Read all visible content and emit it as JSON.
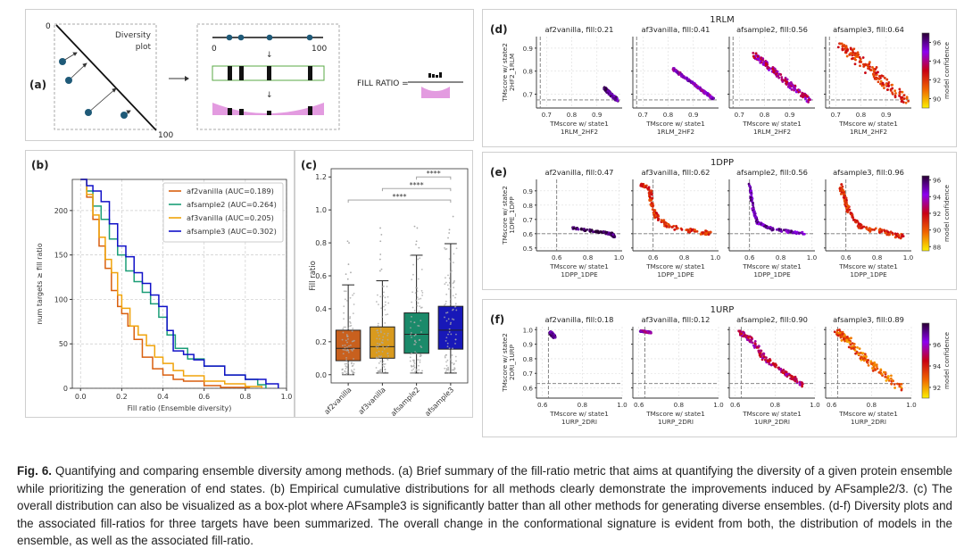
{
  "panel_a": {
    "label": "(a)",
    "axis_start": "0",
    "axis_end": "100",
    "diversity_plot_label_line1": "Diversity",
    "diversity_plot_label_line2": "plot",
    "line_start": "0",
    "line_end": "100",
    "fill_ratio_label": "FILL RATIO =",
    "colors": {
      "point": "#1f5a78",
      "bin_box": "#5aaa45",
      "density": "#e39be0"
    }
  },
  "chart_data": [
    {
      "id": "b",
      "panel_label": "(b)",
      "type": "line",
      "title": "",
      "xlabel": "Fill ratio (Ensemble diversity)",
      "ylabel": "num targets ≥ fill ratio",
      "xlim": [
        -0.04,
        1.0
      ],
      "ylim": [
        0,
        235
      ],
      "xticks": [
        "0.0",
        "0.2",
        "0.4",
        "0.6",
        "0.8",
        "1.0"
      ],
      "yticks": [
        "0",
        "50",
        "100",
        "150",
        "200"
      ],
      "grid": true,
      "legend_position": "top-right",
      "series": [
        {
          "name": "af2vanilla (AUC=0.189)",
          "color": "#d95f0e",
          "x": [
            0.0,
            0.03,
            0.06,
            0.09,
            0.12,
            0.15,
            0.18,
            0.2,
            0.23,
            0.26,
            0.3,
            0.35,
            0.4,
            0.45,
            0.5,
            0.6,
            0.68,
            0.82
          ],
          "y": [
            235,
            215,
            190,
            160,
            135,
            110,
            92,
            84,
            70,
            55,
            35,
            22,
            15,
            10,
            8,
            3,
            1,
            0
          ]
        },
        {
          "name": "afsample2 (AUC=0.264)",
          "color": "#1b9e77",
          "x": [
            0.0,
            0.03,
            0.06,
            0.1,
            0.14,
            0.18,
            0.22,
            0.26,
            0.3,
            0.34,
            0.38,
            0.42,
            0.46,
            0.52,
            0.6,
            0.7,
            0.8,
            0.86,
            0.9
          ],
          "y": [
            235,
            222,
            205,
            190,
            168,
            150,
            132,
            120,
            108,
            95,
            80,
            60,
            45,
            33,
            25,
            15,
            10,
            4,
            0
          ]
        },
        {
          "name": "af3vanilla (AUC=0.205)",
          "color": "#f0a30a",
          "x": [
            0.0,
            0.03,
            0.06,
            0.09,
            0.12,
            0.15,
            0.18,
            0.2,
            0.24,
            0.28,
            0.32,
            0.36,
            0.4,
            0.45,
            0.5,
            0.6,
            0.7,
            0.8,
            0.88
          ],
          "y": [
            235,
            218,
            195,
            170,
            145,
            130,
            105,
            90,
            70,
            60,
            48,
            35,
            28,
            20,
            14,
            8,
            5,
            2,
            0
          ]
        },
        {
          "name": "afsample3 (AUC=0.302)",
          "color": "#1010c8",
          "x": [
            0.0,
            0.03,
            0.06,
            0.1,
            0.14,
            0.18,
            0.22,
            0.26,
            0.3,
            0.34,
            0.38,
            0.42,
            0.45,
            0.5,
            0.55,
            0.6,
            0.7,
            0.8,
            0.9,
            0.96,
            0.96
          ],
          "y": [
            235,
            228,
            222,
            210,
            185,
            160,
            148,
            130,
            118,
            105,
            92,
            65,
            42,
            38,
            32,
            25,
            15,
            10,
            5,
            4,
            0
          ]
        }
      ]
    },
    {
      "id": "c",
      "panel_label": "(c)",
      "type": "box",
      "ylabel": "Fill ratio",
      "ylim": [
        -0.05,
        1.25
      ],
      "yticks": [
        "0.0",
        "0.2",
        "0.4",
        "0.6",
        "0.8",
        "1.0",
        "1.2"
      ],
      "categories": [
        "af2vanilla",
        "af3vanilla",
        "afsample2",
        "afsample3"
      ],
      "colors": [
        "#c8601e",
        "#d99a1e",
        "#1b8a6a",
        "#1818b8"
      ],
      "boxes": [
        {
          "whisker_low": 0.0,
          "q1": 0.085,
          "median": 0.16,
          "q3": 0.27,
          "whisker_high": 0.545,
          "outliers": [
            0.58,
            0.61,
            0.62,
            0.67,
            0.8,
            0.81
          ]
        },
        {
          "whisker_low": 0.01,
          "q1": 0.1,
          "median": 0.17,
          "q3": 0.29,
          "whisker_high": 0.57,
          "outliers": [
            0.63,
            0.64,
            0.7,
            0.73,
            0.81,
            0.85,
            0.89
          ]
        },
        {
          "whisker_low": 0.01,
          "q1": 0.13,
          "median": 0.245,
          "q3": 0.375,
          "whisker_high": 0.725,
          "outliers": [
            0.77,
            0.79,
            0.81,
            0.89,
            0.9
          ]
        },
        {
          "whisker_low": 0.01,
          "q1": 0.155,
          "median": 0.27,
          "q3": 0.415,
          "whisker_high": 0.795,
          "outliers": [
            0.83,
            0.86,
            0.88,
            0.96
          ]
        }
      ],
      "significance": [
        {
          "from": 0,
          "to": 3,
          "label": "****",
          "y": 1.06
        },
        {
          "from": 1,
          "to": 3,
          "label": "****",
          "y": 1.13
        },
        {
          "from": 2,
          "to": 3,
          "label": "****",
          "y": 1.2
        }
      ]
    },
    {
      "id": "d",
      "panel_label": "(d)",
      "type": "scatter",
      "target": "1RLM",
      "xlabel_line1": "TMscore w/ state1",
      "xlabel_line2": "1RLM_2HF2",
      "ylabel_line1": "TMscore w/ state2",
      "ylabel_line2": "2HF2_1RLM",
      "xlim": [
        0.66,
        1.0
      ],
      "ylim": [
        0.64,
        0.95
      ],
      "xticks": [
        0.7,
        0.8,
        0.9
      ],
      "yticks": [
        0.7,
        0.8,
        0.9
      ],
      "ref_x": 0.675,
      "ref_y": 0.675,
      "colorbar": {
        "label": "model confidence",
        "ticks": [
          "90",
          "92",
          "94",
          "96"
        ],
        "range": [
          89,
          97
        ]
      },
      "subplots": [
        {
          "title": "af2vanilla, fill:0.21",
          "line": [
            [
              0.93,
              0.725
            ],
            [
              0.98,
              0.675
            ]
          ],
          "conf": 96,
          "spread": 0.008
        },
        {
          "title": "af3vanilla, fill:0.41",
          "line": [
            [
              0.82,
              0.81
            ],
            [
              0.98,
              0.68
            ]
          ],
          "conf": 95,
          "spread": 0.006
        },
        {
          "title": "afsample2, fill:0.56",
          "line": [
            [
              0.76,
              0.87
            ],
            [
              0.98,
              0.67
            ]
          ],
          "conf": 94,
          "spread": 0.014
        },
        {
          "title": "afsample3, fill:0.64",
          "line": [
            [
              0.72,
              0.92
            ],
            [
              0.98,
              0.67
            ]
          ],
          "conf": 92,
          "spread": 0.03
        }
      ]
    },
    {
      "id": "e",
      "panel_label": "(e)",
      "type": "scatter",
      "target": "1DPP",
      "xlabel_line1": "TMscore w/ state1",
      "xlabel_line2": "1DPP_1DPE",
      "ylabel_line1": "TMscore w/ state2",
      "ylabel_line2": "1DPE_1DPP",
      "xlim": [
        0.47,
        1.02
      ],
      "ylim": [
        0.48,
        0.98
      ],
      "xticks": [
        0.6,
        0.8,
        1.0
      ],
      "yticks": [
        0.5,
        0.6,
        0.7,
        0.8,
        0.9
      ],
      "ref_x": 0.6,
      "ref_y": 0.6,
      "colorbar": {
        "label": "model confidence",
        "ticks": [
          "88",
          "90",
          "92",
          "94",
          "96"
        ],
        "range": [
          87.5,
          96.5
        ]
      },
      "subplots": [
        {
          "title": "af2vanilla, fill:0.47",
          "path": [
            [
              0.7,
              0.64
            ],
            [
              0.95,
              0.6
            ],
            [
              0.97,
              0.58
            ]
          ],
          "conf": 96,
          "spread": 0.01
        },
        {
          "title": "af3vanilla, fill:0.62",
          "path": [
            [
              0.52,
              0.95
            ],
            [
              0.58,
              0.9
            ],
            [
              0.59,
              0.8
            ],
            [
              0.62,
              0.72
            ],
            [
              0.7,
              0.65
            ],
            [
              0.85,
              0.62
            ],
            [
              0.97,
              0.6
            ]
          ],
          "conf": 91,
          "spread": 0.02
        },
        {
          "title": "afsample2, fill:0.56",
          "path": [
            [
              0.6,
              0.95
            ],
            [
              0.62,
              0.78
            ],
            [
              0.65,
              0.68
            ],
            [
              0.75,
              0.63
            ],
            [
              0.95,
              0.6
            ]
          ],
          "conf": 95,
          "spread": 0.012
        },
        {
          "title": "afsample3, fill:0.96",
          "path": [
            [
              0.56,
              0.95
            ],
            [
              0.59,
              0.85
            ],
            [
              0.62,
              0.75
            ],
            [
              0.7,
              0.64
            ],
            [
              0.85,
              0.61
            ],
            [
              0.96,
              0.58
            ]
          ],
          "conf": 91,
          "spread": 0.02
        }
      ]
    },
    {
      "id": "f",
      "panel_label": "(f)",
      "type": "scatter",
      "target": "1URP",
      "xlabel_line1": "TMscore w/ state1",
      "xlabel_line2": "1URP_2DRI",
      "ylabel_line1": "TMscore w/ state2",
      "ylabel_line2": "2DRI_1URP",
      "xlim": [
        0.57,
        1.0
      ],
      "ylim": [
        0.53,
        1.02
      ],
      "xticks": [
        0.6,
        0.8,
        1.0
      ],
      "yticks": [
        0.6,
        0.7,
        0.8,
        0.9,
        1.0
      ],
      "ref_x": 0.63,
      "ref_y": 0.63,
      "colorbar": {
        "label": "model confidence",
        "ticks": [
          "92",
          "94",
          "96"
        ],
        "range": [
          91,
          98
        ]
      },
      "subplots": [
        {
          "title": "af2vanilla, fill:0.18",
          "path": [
            [
              0.64,
              0.98
            ],
            [
              0.66,
              0.95
            ]
          ],
          "conf": 97,
          "spread": 0.012
        },
        {
          "title": "af3vanilla, fill:0.12",
          "path": [
            [
              0.61,
              0.99
            ],
            [
              0.66,
              0.98
            ]
          ],
          "conf": 96,
          "spread": 0.006
        },
        {
          "title": "afsample2, fill:0.90",
          "path": [
            [
              0.62,
              0.98
            ],
            [
              0.68,
              0.93
            ],
            [
              0.75,
              0.8
            ],
            [
              0.85,
              0.7
            ],
            [
              0.94,
              0.62
            ]
          ],
          "conf": 95,
          "spread": 0.02
        },
        {
          "title": "afsample3, fill:0.89",
          "path": [
            [
              0.62,
              0.99
            ],
            [
              0.68,
              0.93
            ],
            [
              0.75,
              0.82
            ],
            [
              0.85,
              0.7
            ],
            [
              0.95,
              0.6
            ]
          ],
          "conf": 93,
          "spread": 0.03
        }
      ]
    }
  ],
  "caption": {
    "fig_label": "Fig. 6.",
    "text": " Quantifying and comparing ensemble diversity among methods. (a) Brief summary of the fill-ratio metric that aims at quantifying the diversity of a given protein ensemble while prioritizing the generation of end states. (b) Empirical cumulative distributions for all methods clearly demonstrate the improvements induced by AFsample2/3. (c) The overall distribution can also be visualized as a box-plot where AFsample3 is significantly batter than all other methods for generating diverse ensembles. (d-f) Diversity plots and the associated fill-ratios for three targets have been summarized. The overall change in the conformational signature is evident from both, the distribution of models in the ensemble, as well as the associated fill-ratio."
  }
}
